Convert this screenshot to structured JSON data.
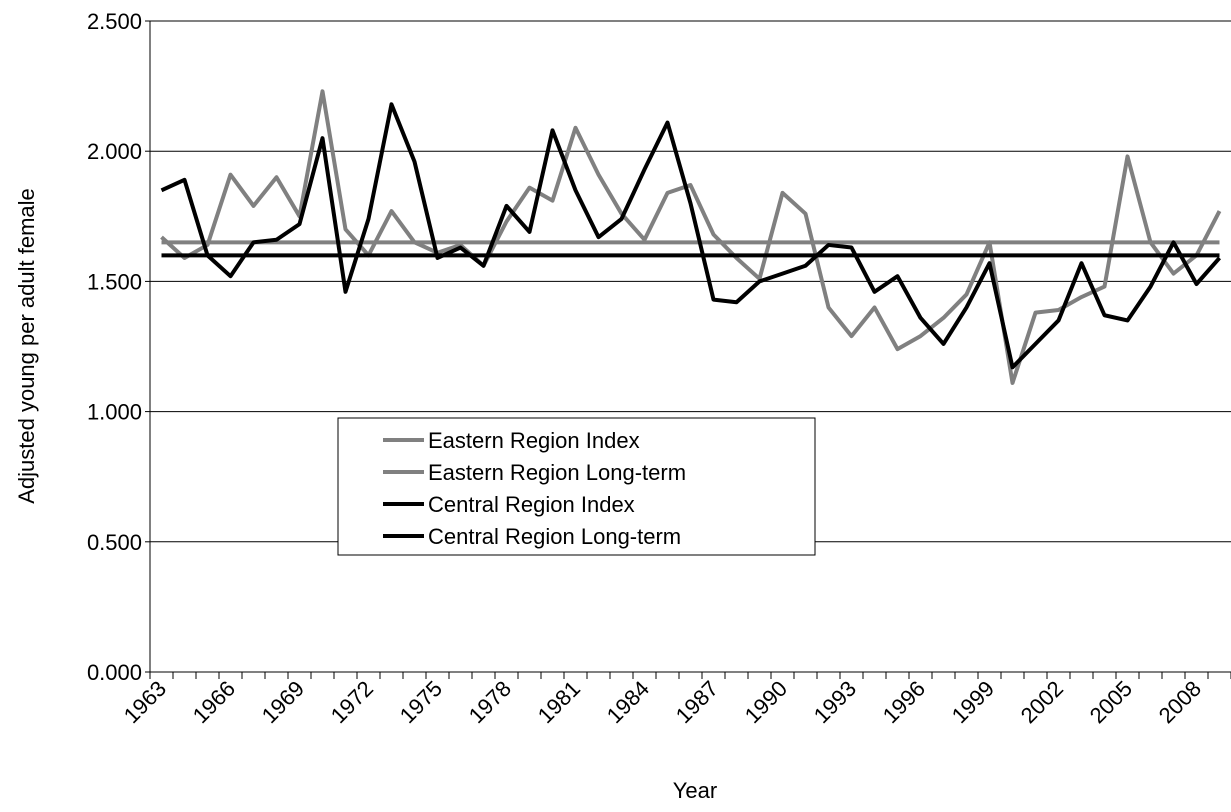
{
  "chart_data": {
    "type": "line",
    "y_label": "Adjusted young per adult female",
    "x_label": "Year",
    "categories": [
      "1963",
      null,
      null,
      "1966",
      null,
      null,
      "1969",
      null,
      null,
      "1972",
      null,
      null,
      "1975",
      null,
      null,
      "1978",
      null,
      null,
      "1981",
      null,
      null,
      "1984",
      null,
      null,
      "1987",
      null,
      null,
      "1990",
      null,
      null,
      "1993",
      null,
      null,
      "1996",
      null,
      null,
      "1999",
      null,
      null,
      "2002",
      null,
      null,
      "2005",
      null,
      null,
      "2008",
      null
    ],
    "series": [
      {
        "name": "Eastern Region Index",
        "color": "#808080",
        "values": [
          1.67,
          1.59,
          1.64,
          1.91,
          1.79,
          1.9,
          1.75,
          2.23,
          1.7,
          1.6,
          1.77,
          1.65,
          1.61,
          1.64,
          1.56,
          1.73,
          1.86,
          1.81,
          2.09,
          1.91,
          1.76,
          1.66,
          1.84,
          1.87,
          1.68,
          1.59,
          1.51,
          1.84,
          1.76,
          1.4,
          1.29,
          1.4,
          1.24,
          1.29,
          1.36,
          1.45,
          1.65,
          1.11,
          1.38,
          1.39,
          1.44,
          1.48,
          1.98,
          1.65,
          1.53,
          1.6,
          1.77
        ]
      },
      {
        "name": "Eastern Region Long-term",
        "color": "#808080",
        "values": [
          1.65,
          1.65,
          1.65,
          1.65,
          1.65,
          1.65,
          1.65,
          1.65,
          1.65,
          1.65,
          1.65,
          1.65,
          1.65,
          1.65,
          1.65,
          1.65,
          1.65,
          1.65,
          1.65,
          1.65,
          1.65,
          1.65,
          1.65,
          1.65,
          1.65,
          1.65,
          1.65,
          1.65,
          1.65,
          1.65,
          1.65,
          1.65,
          1.65,
          1.65,
          1.65,
          1.65,
          1.65,
          1.65,
          1.65,
          1.65,
          1.65,
          1.65,
          1.65,
          1.65,
          1.65,
          1.65,
          1.65
        ]
      },
      {
        "name": "Central Region Index",
        "color": "#000000",
        "values": [
          1.85,
          1.89,
          1.6,
          1.52,
          1.65,
          1.66,
          1.72,
          2.05,
          1.46,
          1.74,
          2.18,
          1.96,
          1.59,
          1.63,
          1.56,
          1.79,
          1.69,
          2.08,
          1.85,
          1.67,
          1.74,
          1.93,
          2.11,
          1.8,
          1.43,
          1.42,
          1.5,
          1.53,
          1.56,
          1.64,
          1.63,
          1.46,
          1.52,
          1.36,
          1.26,
          1.4,
          1.57,
          1.17,
          1.26,
          1.35,
          1.57,
          1.37,
          1.35,
          1.48,
          1.65,
          1.49,
          1.59
        ]
      },
      {
        "name": "Central Region Long-term",
        "color": "#000000",
        "values": [
          1.6,
          1.6,
          1.6,
          1.6,
          1.6,
          1.6,
          1.6,
          1.6,
          1.6,
          1.6,
          1.6,
          1.6,
          1.6,
          1.6,
          1.6,
          1.6,
          1.6,
          1.6,
          1.6,
          1.6,
          1.6,
          1.6,
          1.6,
          1.6,
          1.6,
          1.6,
          1.6,
          1.6,
          1.6,
          1.6,
          1.6,
          1.6,
          1.6,
          1.6,
          1.6,
          1.6,
          1.6,
          1.6,
          1.6,
          1.6,
          1.6,
          1.6,
          1.6,
          1.6,
          1.6,
          1.6,
          1.6
        ]
      }
    ],
    "ylim": [
      0,
      2.5
    ],
    "yticks": [
      {
        "value": 0,
        "label": "0.000"
      },
      {
        "value": 0.5,
        "label": "0.500"
      },
      {
        "value": 1,
        "label": "1.000"
      },
      {
        "value": 1.5,
        "label": "1.500"
      },
      {
        "value": 2,
        "label": "2.000"
      },
      {
        "value": 2.5,
        "label": "2.500"
      }
    ],
    "grid": true
  }
}
